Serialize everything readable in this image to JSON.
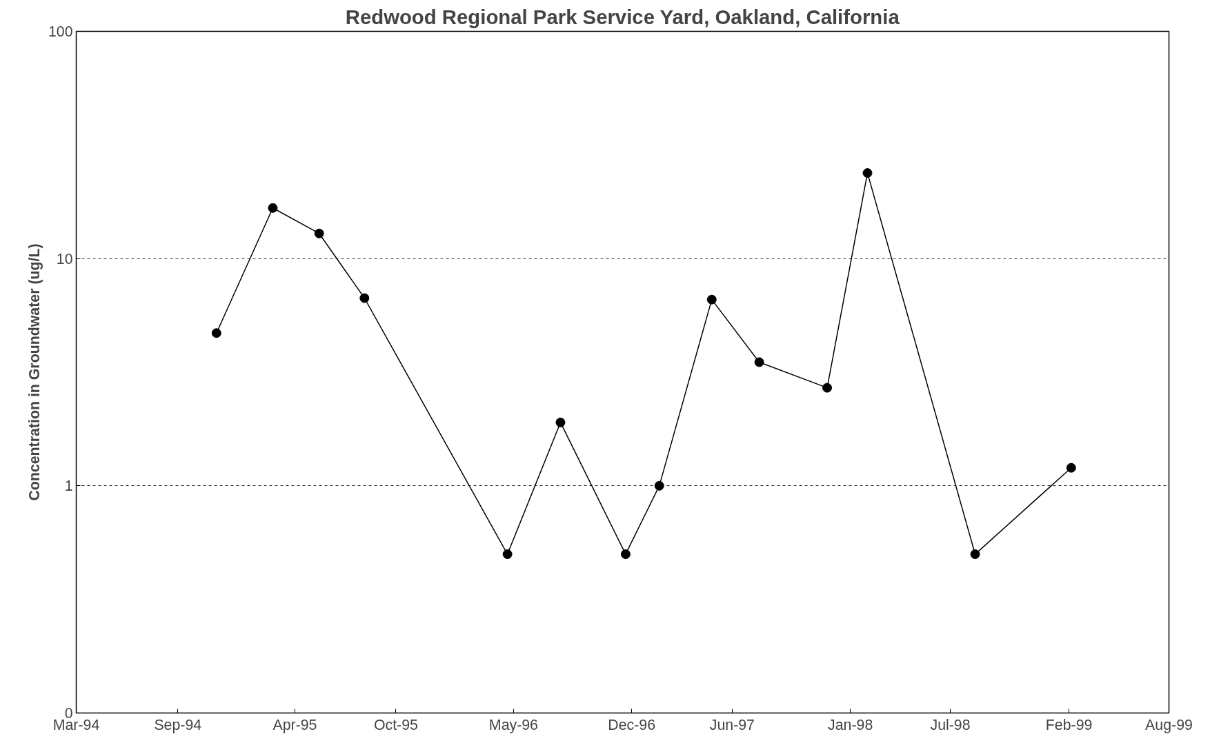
{
  "chart_data": {
    "type": "line",
    "title": "Redwood Regional Park Service Yard, Oakland, California",
    "ylabel": "Concentration in Groundwater (ug/L)",
    "x": [
      "1994-11-10",
      "1995-02-20",
      "1995-05-15",
      "1995-08-05",
      "1996-04-20",
      "1996-07-25",
      "1996-11-20",
      "1997-01-20",
      "1997-04-25",
      "1997-07-20",
      "1997-11-20",
      "1998-02-01",
      "1998-08-15",
      "1999-02-05"
    ],
    "series": [
      {
        "color": "#000000",
        "values": [
          4.7,
          16.7,
          12.9,
          6.7,
          0.5,
          1.9,
          0.5,
          1.0,
          6.6,
          3.5,
          2.7,
          23.8,
          0.5,
          1.2
        ]
      }
    ],
    "log": "y",
    "ylim": [
      0.1,
      100
    ],
    "yticks": [
      {
        "value": 0.1,
        "label": "0"
      },
      1,
      10,
      100
    ],
    "xlim": [
      "1994-03-01",
      "1999-08-01"
    ],
    "xticks": [
      {
        "value": "1994-03-01",
        "label": "Mar-94"
      },
      {
        "value": "1994-09-01",
        "label": "Sep-94"
      },
      {
        "value": "1995-04-01",
        "label": "Apr-95"
      },
      {
        "value": "1995-10-01",
        "label": "Oct-95"
      },
      {
        "value": "1996-05-01",
        "label": "May-96"
      },
      {
        "value": "1996-12-01",
        "label": "Dec-96"
      },
      {
        "value": "1997-06-01",
        "label": "Jun-97"
      },
      {
        "value": "1998-01-01",
        "label": "Jan-98"
      },
      {
        "value": "1998-07-01",
        "label": "Jul-98"
      },
      {
        "value": "1999-02-01",
        "label": "Feb-99"
      },
      {
        "value": "1999-08-01",
        "label": "Aug-99"
      }
    ],
    "grid": "y",
    "marker": "circle",
    "line_style": "solid"
  }
}
